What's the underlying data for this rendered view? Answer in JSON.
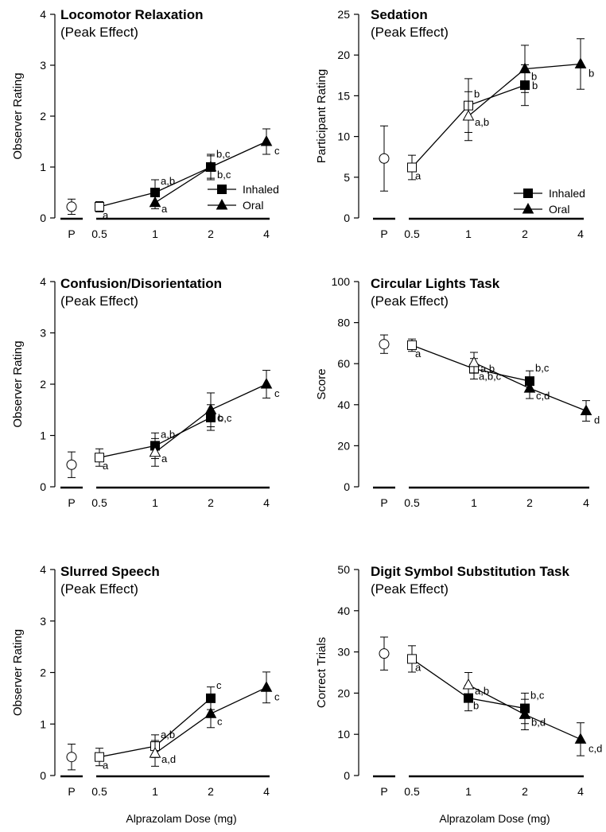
{
  "shared": {
    "x_tick_labels": [
      "P",
      "0.5",
      "1",
      "2",
      "4"
    ],
    "legend": [
      "Inhaled",
      "Oral"
    ],
    "x_axis_label": "Alprazolam Dose (mg)"
  },
  "chart_data": [
    {
      "type": "line",
      "title": "Locomotor Relaxation",
      "subtitle": "(Peak Effect)",
      "ylabel": "Observer Rating",
      "ylim": [
        0,
        4
      ],
      "yticks": [
        0,
        1,
        2,
        3,
        4
      ],
      "placebo": {
        "value": 0.22,
        "err": 0.15
      },
      "series": [
        {
          "name": "Inhaled",
          "points": [
            {
              "dose": "0.5",
              "value": 0.22,
              "err": 0.1,
              "open": true,
              "label": "a"
            },
            {
              "dose": "1",
              "value": 0.5,
              "err": 0.25,
              "open": false,
              "label": "a,b"
            },
            {
              "dose": "2",
              "value": 1.0,
              "err": 0.22,
              "open": false,
              "label": "b,c"
            }
          ]
        },
        {
          "name": "Oral",
          "points": [
            {
              "dose": "1",
              "value": 0.3,
              "err": 0.12,
              "open": false,
              "label": "a"
            },
            {
              "dose": "2",
              "value": 1.0,
              "err": 0.25,
              "open": false,
              "label": "b,c"
            },
            {
              "dose": "4",
              "value": 1.5,
              "err": 0.25,
              "open": false,
              "label": "c"
            }
          ]
        }
      ],
      "legend": true
    },
    {
      "type": "line",
      "title": "Sedation",
      "subtitle": "(Peak Effect)",
      "ylabel": "Participant Rating",
      "ylim": [
        0,
        25
      ],
      "yticks": [
        0,
        5,
        10,
        15,
        20,
        25
      ],
      "placebo": {
        "value": 7.3,
        "err": 4.0
      },
      "series": [
        {
          "name": "Inhaled",
          "points": [
            {
              "dose": "0.5",
              "value": 6.2,
              "err": 1.5,
              "open": true,
              "label": "a"
            },
            {
              "dose": "1",
              "value": 13.8,
              "err": 3.3,
              "open": true,
              "label": "b"
            },
            {
              "dose": "2",
              "value": 16.3,
              "err": 2.5,
              "open": false,
              "label": "b"
            }
          ]
        },
        {
          "name": "Oral",
          "points": [
            {
              "dose": "1",
              "value": 12.5,
              "err": 3.0,
              "open": true,
              "label": "a,b"
            },
            {
              "dose": "2",
              "value": 18.3,
              "err": 2.9,
              "open": false,
              "label": "b"
            },
            {
              "dose": "4",
              "value": 18.9,
              "err": 3.1,
              "open": false,
              "label": "b"
            }
          ]
        }
      ],
      "legend": true
    },
    {
      "type": "line",
      "title": "Confusion/Disorientation",
      "subtitle": "(Peak Effect)",
      "ylabel": "Observer Rating",
      "ylim": [
        0,
        4
      ],
      "yticks": [
        0,
        1,
        2,
        3,
        4
      ],
      "placebo": {
        "value": 0.43,
        "err": 0.25
      },
      "series": [
        {
          "name": "Inhaled",
          "points": [
            {
              "dose": "0.5",
              "value": 0.57,
              "err": 0.17,
              "open": true,
              "label": "a"
            },
            {
              "dose": "1",
              "value": 0.8,
              "err": 0.25,
              "open": false,
              "label": "a,b"
            },
            {
              "dose": "2",
              "value": 1.35,
              "err": 0.25,
              "open": false,
              "label": "b,c"
            }
          ]
        },
        {
          "name": "Oral",
          "points": [
            {
              "dose": "1",
              "value": 0.67,
              "err": 0.27,
              "open": true,
              "label": "a"
            },
            {
              "dose": "2",
              "value": 1.5,
              "err": 0.33,
              "open": false,
              "label": "c"
            },
            {
              "dose": "4",
              "value": 2.0,
              "err": 0.27,
              "open": false,
              "label": "c"
            }
          ]
        }
      ],
      "legend": false
    },
    {
      "type": "line",
      "title": "Circular Lights Task",
      "subtitle": "(Peak Effect)",
      "ylabel": "Score",
      "ylim": [
        0,
        100
      ],
      "yticks": [
        0,
        20,
        40,
        60,
        80,
        100
      ],
      "placebo": {
        "value": 69.5,
        "err": 4.5
      },
      "series": [
        {
          "name": "Inhaled",
          "points": [
            {
              "dose": "0.5",
              "value": 69.0,
              "err": 3.0,
              "open": true,
              "label": "a"
            },
            {
              "dose": "1",
              "value": 57.5,
              "err": 5.0,
              "open": true,
              "label": "a,b,c"
            },
            {
              "dose": "2",
              "value": 51.5,
              "err": 5.0,
              "open": false,
              "label": "b,c"
            }
          ]
        },
        {
          "name": "Oral",
          "points": [
            {
              "dose": "1",
              "value": 60.5,
              "err": 5.0,
              "open": true,
              "label": "a,b"
            },
            {
              "dose": "2",
              "value": 48.0,
              "err": 5.0,
              "open": false,
              "label": "c,d"
            },
            {
              "dose": "4",
              "value": 37.0,
              "err": 5.0,
              "open": false,
              "label": "d"
            }
          ]
        }
      ],
      "legend": false
    },
    {
      "type": "line",
      "title": "Slurred Speech",
      "subtitle": "(Peak Effect)",
      "ylabel": "Observer Rating",
      "ylim": [
        0,
        4
      ],
      "yticks": [
        0,
        1,
        2,
        3,
        4
      ],
      "placebo": {
        "value": 0.36,
        "err": 0.25
      },
      "series": [
        {
          "name": "Inhaled",
          "points": [
            {
              "dose": "0.5",
              "value": 0.36,
              "err": 0.17,
              "open": true,
              "label": "a"
            },
            {
              "dose": "1",
              "value": 0.57,
              "err": 0.22,
              "open": true,
              "label": "a,b"
            },
            {
              "dose": "2",
              "value": 1.5,
              "err": 0.22,
              "open": false,
              "label": "c"
            }
          ]
        },
        {
          "name": "Oral",
          "points": [
            {
              "dose": "1",
              "value": 0.43,
              "err": 0.25,
              "open": true,
              "label": "a,d"
            },
            {
              "dose": "2",
              "value": 1.2,
              "err": 0.27,
              "open": false,
              "label": "c"
            },
            {
              "dose": "4",
              "value": 1.71,
              "err": 0.3,
              "open": false,
              "label": "c"
            }
          ]
        }
      ],
      "legend": false
    },
    {
      "type": "line",
      "title": "Digit Symbol Substitution Task",
      "subtitle": "(Peak Effect)",
      "ylabel": "Correct Trials",
      "ylim": [
        0,
        50
      ],
      "yticks": [
        0,
        10,
        20,
        30,
        40,
        50
      ],
      "placebo": {
        "value": 29.6,
        "err": 4.0
      },
      "series": [
        {
          "name": "Inhaled",
          "points": [
            {
              "dose": "0.5",
              "value": 28.3,
              "err": 3.2,
              "open": true,
              "label": "a"
            },
            {
              "dose": "1",
              "value": 18.8,
              "err": 3.1,
              "open": false,
              "label": "b"
            },
            {
              "dose": "2",
              "value": 16.3,
              "err": 3.7,
              "open": false,
              "label": "b,c"
            }
          ]
        },
        {
          "name": "Oral",
          "points": [
            {
              "dose": "1",
              "value": 22.0,
              "err": 3.0,
              "open": true,
              "label": "a,b"
            },
            {
              "dose": "2",
              "value": 14.8,
              "err": 3.7,
              "open": false,
              "label": "b,d"
            },
            {
              "dose": "4",
              "value": 8.8,
              "err": 4.0,
              "open": false,
              "label": "c,d"
            }
          ]
        }
      ],
      "legend": false
    }
  ]
}
